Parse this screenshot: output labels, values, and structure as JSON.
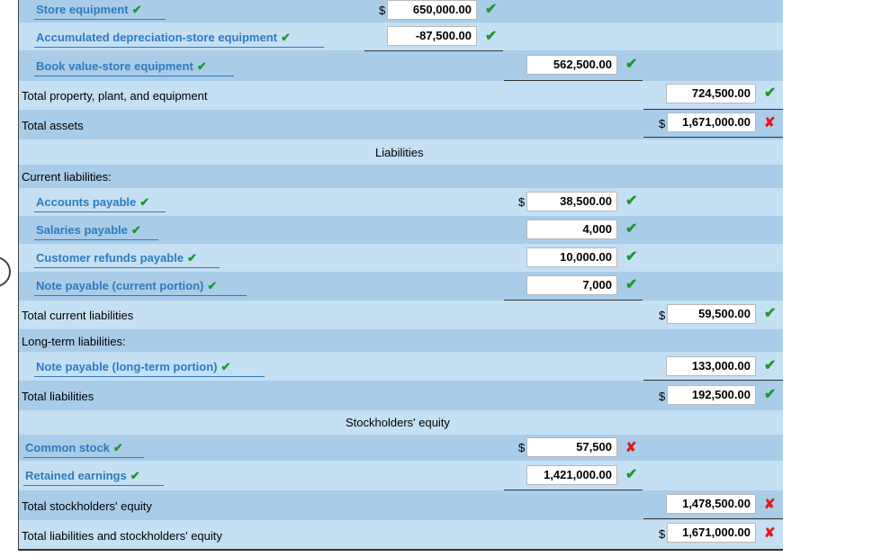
{
  "rows": {
    "store_equipment": {
      "label": "Store equipment",
      "dollar": "$",
      "value": "650,000.00",
      "status": "check"
    },
    "accum_dep": {
      "label": "Accumulated depreciation-store equipment",
      "value": "-87,500.00",
      "status": "check"
    },
    "book_value": {
      "label": "Book value-store equipment",
      "value": "562,500.00",
      "status": "check"
    },
    "total_ppe": {
      "label": "Total property, plant, and equipment",
      "value": "724,500.00",
      "status": "check"
    },
    "total_assets": {
      "label": "Total assets",
      "dollar": "$",
      "value": "1,671,000.00",
      "status": "x"
    },
    "liabilities_header": {
      "label": "Liabilities"
    },
    "current_liabilities": {
      "label": "Current liabilities:"
    },
    "accounts_payable": {
      "label": "Accounts payable",
      "dollar": "$",
      "value": "38,500.00",
      "status": "check"
    },
    "salaries_payable": {
      "label": "Salaries payable",
      "value": "4,000",
      "status": "check"
    },
    "customer_refunds": {
      "label": "Customer refunds payable",
      "value": "10,000.00",
      "status": "check"
    },
    "note_current": {
      "label": "Note payable (current portion)",
      "value": "7,000",
      "status": "check"
    },
    "total_current": {
      "label": "Total current liabilities",
      "dollar": "$",
      "value": "59,500.00",
      "status": "check"
    },
    "long_term": {
      "label": "Long-term liabilities:"
    },
    "note_long": {
      "label": "Note payable (long-term portion)",
      "value": "133,000.00",
      "status": "check"
    },
    "total_liabilities": {
      "label": "Total liabilities",
      "dollar": "$",
      "value": "192,500.00",
      "status": "check"
    },
    "se_header": {
      "label": "Stockholders' equity"
    },
    "common_stock": {
      "label": "Common stock",
      "dollar": "$",
      "value": "57,500",
      "status": "x"
    },
    "retained_earnings": {
      "label": "Retained earnings",
      "value": "1,421,000.00",
      "status": "check"
    },
    "total_se": {
      "label": "Total stockholders' equity",
      "value": "1,478,500.00",
      "status": "x"
    },
    "total_le": {
      "label": "Total liabilities and stockholders' equity",
      "dollar": "$",
      "value": "1,671,000.00",
      "status": "x"
    }
  },
  "icons": {
    "check": "✔",
    "x": "✘"
  },
  "colors": {
    "dark_row": "#a9cce9",
    "light_row": "#c5dff3",
    "link": "#2e7bbf",
    "check": "#1d9a2a",
    "x": "#e01b1b"
  }
}
